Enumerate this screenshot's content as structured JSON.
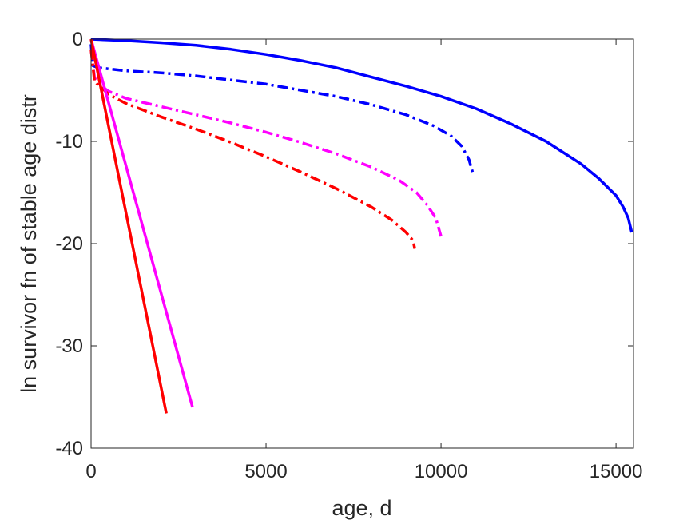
{
  "chart_data": {
    "type": "line",
    "title": "",
    "xlabel": "age, d",
    "ylabel": "ln survivor fn of stable age distr",
    "xlim": [
      0,
      15500
    ],
    "ylim": [
      -40,
      0
    ],
    "xticks": [
      0,
      5000,
      10000,
      15000
    ],
    "xtick_labels": [
      "0",
      "5000",
      "10000",
      "15000"
    ],
    "yticks": [
      0,
      -10,
      -20,
      -30,
      -40
    ],
    "ytick_labels": [
      "0",
      "-10",
      "-20",
      "-30",
      "-40"
    ],
    "grid": false,
    "box": true,
    "series": [
      {
        "color": "#0000ff",
        "style": "solid",
        "x": [
          0,
          1000,
          2000,
          3000,
          4000,
          5000,
          6000,
          7000,
          8000,
          9000,
          10000,
          11000,
          12000,
          13000,
          14000,
          14500,
          15000,
          15200,
          15350,
          15450
        ],
        "y": [
          0,
          -0.15,
          -0.35,
          -0.6,
          -1.0,
          -1.5,
          -2.1,
          -2.8,
          -3.7,
          -4.6,
          -5.6,
          -6.8,
          -8.3,
          -10.0,
          -12.2,
          -13.6,
          -15.3,
          -16.4,
          -17.5,
          -18.9
        ]
      },
      {
        "color": "#0000ff",
        "style": "dashdot",
        "x": [
          0,
          50,
          200,
          1000,
          2000,
          3000,
          4000,
          5000,
          6000,
          7000,
          8000,
          9000,
          9800,
          10300,
          10600,
          10800,
          10900
        ],
        "y": [
          -0.5,
          -2.6,
          -2.8,
          -3.1,
          -3.3,
          -3.6,
          -4.0,
          -4.4,
          -5.0,
          -5.6,
          -6.4,
          -7.4,
          -8.5,
          -9.5,
          -10.5,
          -11.8,
          -13.0
        ]
      },
      {
        "color": "#ff00ff",
        "style": "dashdot",
        "x": [
          0,
          100,
          300,
          500,
          1000,
          2000,
          3000,
          4000,
          5000,
          6000,
          7000,
          8000,
          8800,
          9300,
          9600,
          9850,
          10000
        ],
        "y": [
          -1.0,
          -3.8,
          -4.6,
          -5.1,
          -5.8,
          -6.6,
          -7.4,
          -8.2,
          -9.1,
          -10.1,
          -11.2,
          -12.5,
          -13.8,
          -15.0,
          -16.2,
          -17.5,
          -19.3
        ]
      },
      {
        "color": "#ff0000",
        "style": "dashdot",
        "x": [
          0,
          100,
          250,
          500,
          1000,
          2000,
          3000,
          4000,
          5000,
          6000,
          7000,
          8000,
          8600,
          9000,
          9200,
          9250
        ],
        "y": [
          -1.0,
          -4.2,
          -4.6,
          -5.4,
          -6.3,
          -7.6,
          -8.8,
          -10.1,
          -11.5,
          -13.0,
          -14.6,
          -16.4,
          -17.7,
          -18.9,
          -19.7,
          -20.5
        ]
      },
      {
        "color": "#ff00ff",
        "style": "solid",
        "x": [
          0,
          2900
        ],
        "y": [
          0,
          -36
        ]
      },
      {
        "color": "#ff0000",
        "style": "solid",
        "x": [
          0,
          2150
        ],
        "y": [
          0,
          -36.6
        ]
      }
    ]
  }
}
